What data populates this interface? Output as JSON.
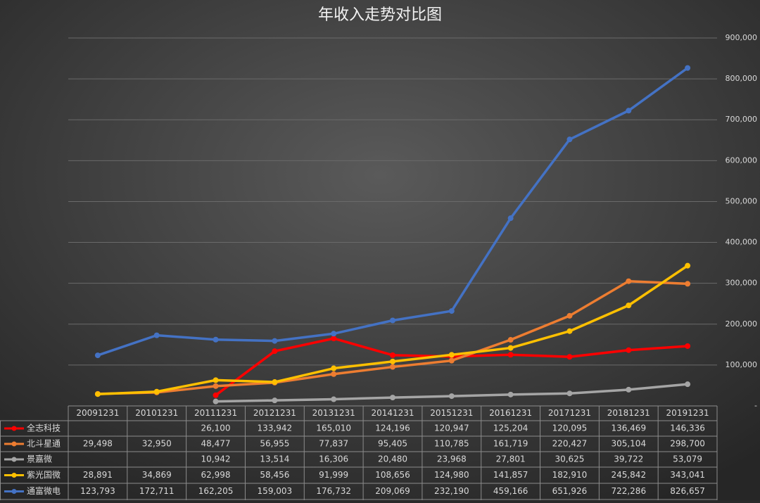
{
  "chart_data": {
    "type": "line",
    "title": "年收入走势对比图",
    "categories": [
      "20091231",
      "20101231",
      "20111231",
      "20121231",
      "20131231",
      "20141231",
      "20151231",
      "20161231",
      "20171231",
      "20181231",
      "20191231"
    ],
    "ylim": [
      0,
      900000
    ],
    "yticks": [
      {
        "value": 0,
        "label": "-"
      },
      {
        "value": 100000,
        "label": "100,000"
      },
      {
        "value": 200000,
        "label": "200,000"
      },
      {
        "value": 300000,
        "label": "300,000"
      },
      {
        "value": 400000,
        "label": "400,000"
      },
      {
        "value": 500000,
        "label": "500,000"
      },
      {
        "value": 600000,
        "label": "600,000"
      },
      {
        "value": 700000,
        "label": "700,000"
      },
      {
        "value": 800000,
        "label": "800,000"
      },
      {
        "value": 900000,
        "label": "900,000"
      }
    ],
    "grid": true,
    "series": [
      {
        "name": "全志科技",
        "color": "#ff0000",
        "values": [
          null,
          null,
          26100,
          133942,
          165010,
          124196,
          120947,
          125204,
          120095,
          136469,
          146336
        ],
        "value_labels": [
          null,
          null,
          "26,100",
          "133,942",
          "165,010",
          "124,196",
          "120,947",
          "125,204",
          "120,095",
          "136,469",
          "146,336"
        ]
      },
      {
        "name": "北斗星通",
        "color": "#ed7d31",
        "values": [
          29498,
          32950,
          48477,
          56955,
          77837,
          95405,
          110785,
          161719,
          220427,
          305104,
          298700
        ],
        "value_labels": [
          "29,498",
          "32,950",
          "48,477",
          "56,955",
          "77,837",
          "95,405",
          "110,785",
          "161,719",
          "220,427",
          "305,104",
          "298,700"
        ]
      },
      {
        "name": "景嘉微",
        "color": "#a5a5a5",
        "values": [
          null,
          null,
          10942,
          13514,
          16306,
          20480,
          23968,
          27801,
          30625,
          39722,
          53079
        ],
        "value_labels": [
          null,
          null,
          "10,942",
          "13,514",
          "16,306",
          "20,480",
          "23,968",
          "27,801",
          "30,625",
          "39,722",
          "53,079"
        ]
      },
      {
        "name": "紫光国微",
        "color": "#ffc000",
        "values": [
          28891,
          34869,
          62998,
          58456,
          91999,
          108656,
          124980,
          141857,
          182910,
          245842,
          343041
        ],
        "value_labels": [
          "28,891",
          "34,869",
          "62,998",
          "58,456",
          "91,999",
          "108,656",
          "124,980",
          "141,857",
          "182,910",
          "245,842",
          "343,041"
        ]
      },
      {
        "name": "通富微电",
        "color": "#4472c4",
        "values": [
          123793,
          172711,
          162205,
          159003,
          176732,
          209069,
          232190,
          459166,
          651926,
          722286,
          826657
        ],
        "value_labels": [
          "123,793",
          "172,711",
          "162,205",
          "159,003",
          "176,732",
          "209,069",
          "232,190",
          "459,166",
          "651,926",
          "722,286",
          "826,657"
        ]
      }
    ]
  }
}
